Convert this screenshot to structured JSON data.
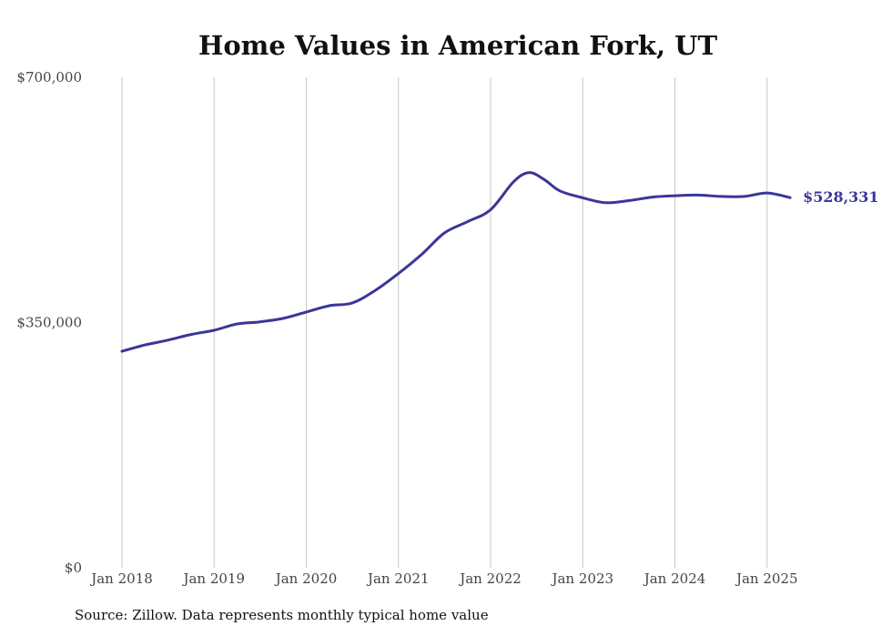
{
  "chart_data": {
    "type": "line",
    "title": "Home Values in American Fork, UT",
    "xlabel": "",
    "ylabel": "",
    "ylim": [
      0,
      700000
    ],
    "y_ticks": [
      {
        "value": 0,
        "label": "$0"
      },
      {
        "value": 350000,
        "label": "$350,000"
      },
      {
        "value": 700000,
        "label": "$700,000"
      }
    ],
    "x_ticks": [
      {
        "value": 2018,
        "label": "Jan 2018"
      },
      {
        "value": 2019,
        "label": "Jan 2019"
      },
      {
        "value": 2020,
        "label": "Jan 2020"
      },
      {
        "value": 2021,
        "label": "Jan 2021"
      },
      {
        "value": 2022,
        "label": "Jan 2022"
      },
      {
        "value": 2023,
        "label": "Jan 2023"
      },
      {
        "value": 2024,
        "label": "Jan 2024"
      },
      {
        "value": 2025,
        "label": "Jan 2025"
      }
    ],
    "xlim": [
      2018,
      2025.33
    ],
    "grid": "vertical",
    "series": [
      {
        "color": "#3b3699",
        "end_label": "$528,331",
        "points": [
          [
            "2018-01",
            309000
          ],
          [
            "2018-04",
            318000
          ],
          [
            "2018-07",
            325000
          ],
          [
            "2018-10",
            333000
          ],
          [
            "2019-01",
            339000
          ],
          [
            "2019-04",
            348000
          ],
          [
            "2019-07",
            351000
          ],
          [
            "2019-10",
            356000
          ],
          [
            "2020-01",
            365000
          ],
          [
            "2020-04",
            374000
          ],
          [
            "2020-07",
            378000
          ],
          [
            "2020-10",
            396000
          ],
          [
            "2021-01",
            420000
          ],
          [
            "2021-04",
            447000
          ],
          [
            "2021-07",
            478000
          ],
          [
            "2021-10",
            494000
          ],
          [
            "2022-01",
            511000
          ],
          [
            "2022-04",
            551000
          ],
          [
            "2022-06",
            564000
          ],
          [
            "2022-08",
            554000
          ],
          [
            "2022-10",
            538000
          ],
          [
            "2023-01",
            528000
          ],
          [
            "2023-04",
            521000
          ],
          [
            "2023-07",
            524000
          ],
          [
            "2023-10",
            529000
          ],
          [
            "2024-01",
            531000
          ],
          [
            "2024-04",
            532000
          ],
          [
            "2024-07",
            530000
          ],
          [
            "2024-10",
            530000
          ],
          [
            "2025-01",
            535000
          ],
          [
            "2025-04",
            528331
          ]
        ]
      }
    ]
  },
  "source_note": "Source: Zillow. Data represents monthly typical home value"
}
